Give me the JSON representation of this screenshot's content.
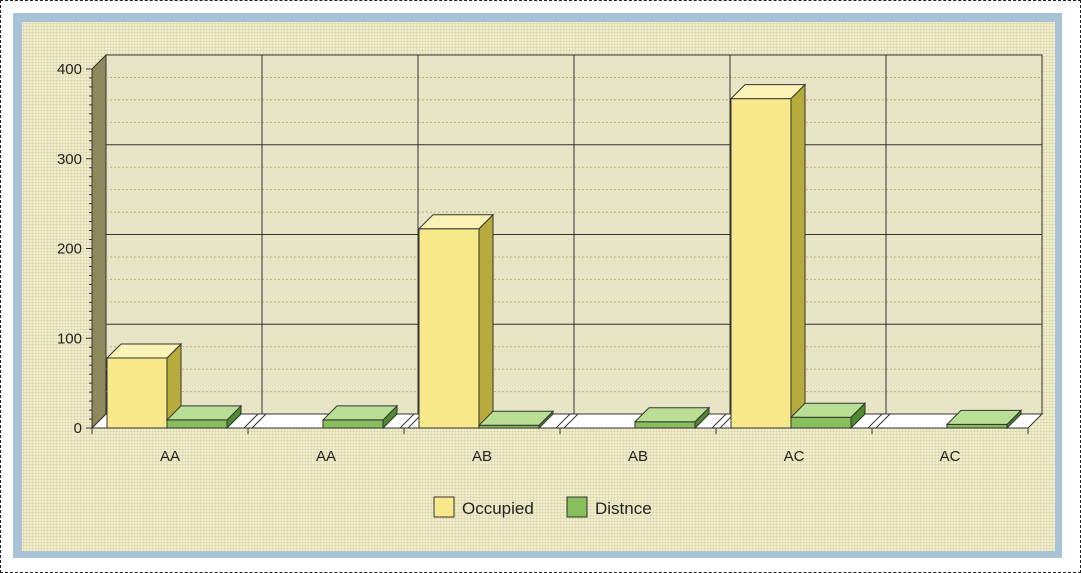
{
  "chart_data": {
    "type": "bar",
    "categories": [
      "AA",
      "AA",
      "AB",
      "AB",
      "AC",
      "AC"
    ],
    "series": [
      {
        "name": "Occupied",
        "values": [
          78,
          0,
          222,
          0,
          367,
          0
        ],
        "color": "#f7e98a",
        "side_color": "#b7ab3c",
        "top_color": "#fbf3b6"
      },
      {
        "name": "Distnce",
        "values": [
          9,
          9,
          3,
          7,
          12,
          4
        ],
        "color": "#86bf5c",
        "side_color": "#4f8a2e",
        "top_color": "#b9df94"
      }
    ],
    "ylim": [
      0,
      400
    ],
    "yticks": [
      0,
      100,
      200,
      300,
      400
    ],
    "grid": true,
    "legend_position": "bottom-center",
    "plot_background": "#e7e4c4"
  }
}
